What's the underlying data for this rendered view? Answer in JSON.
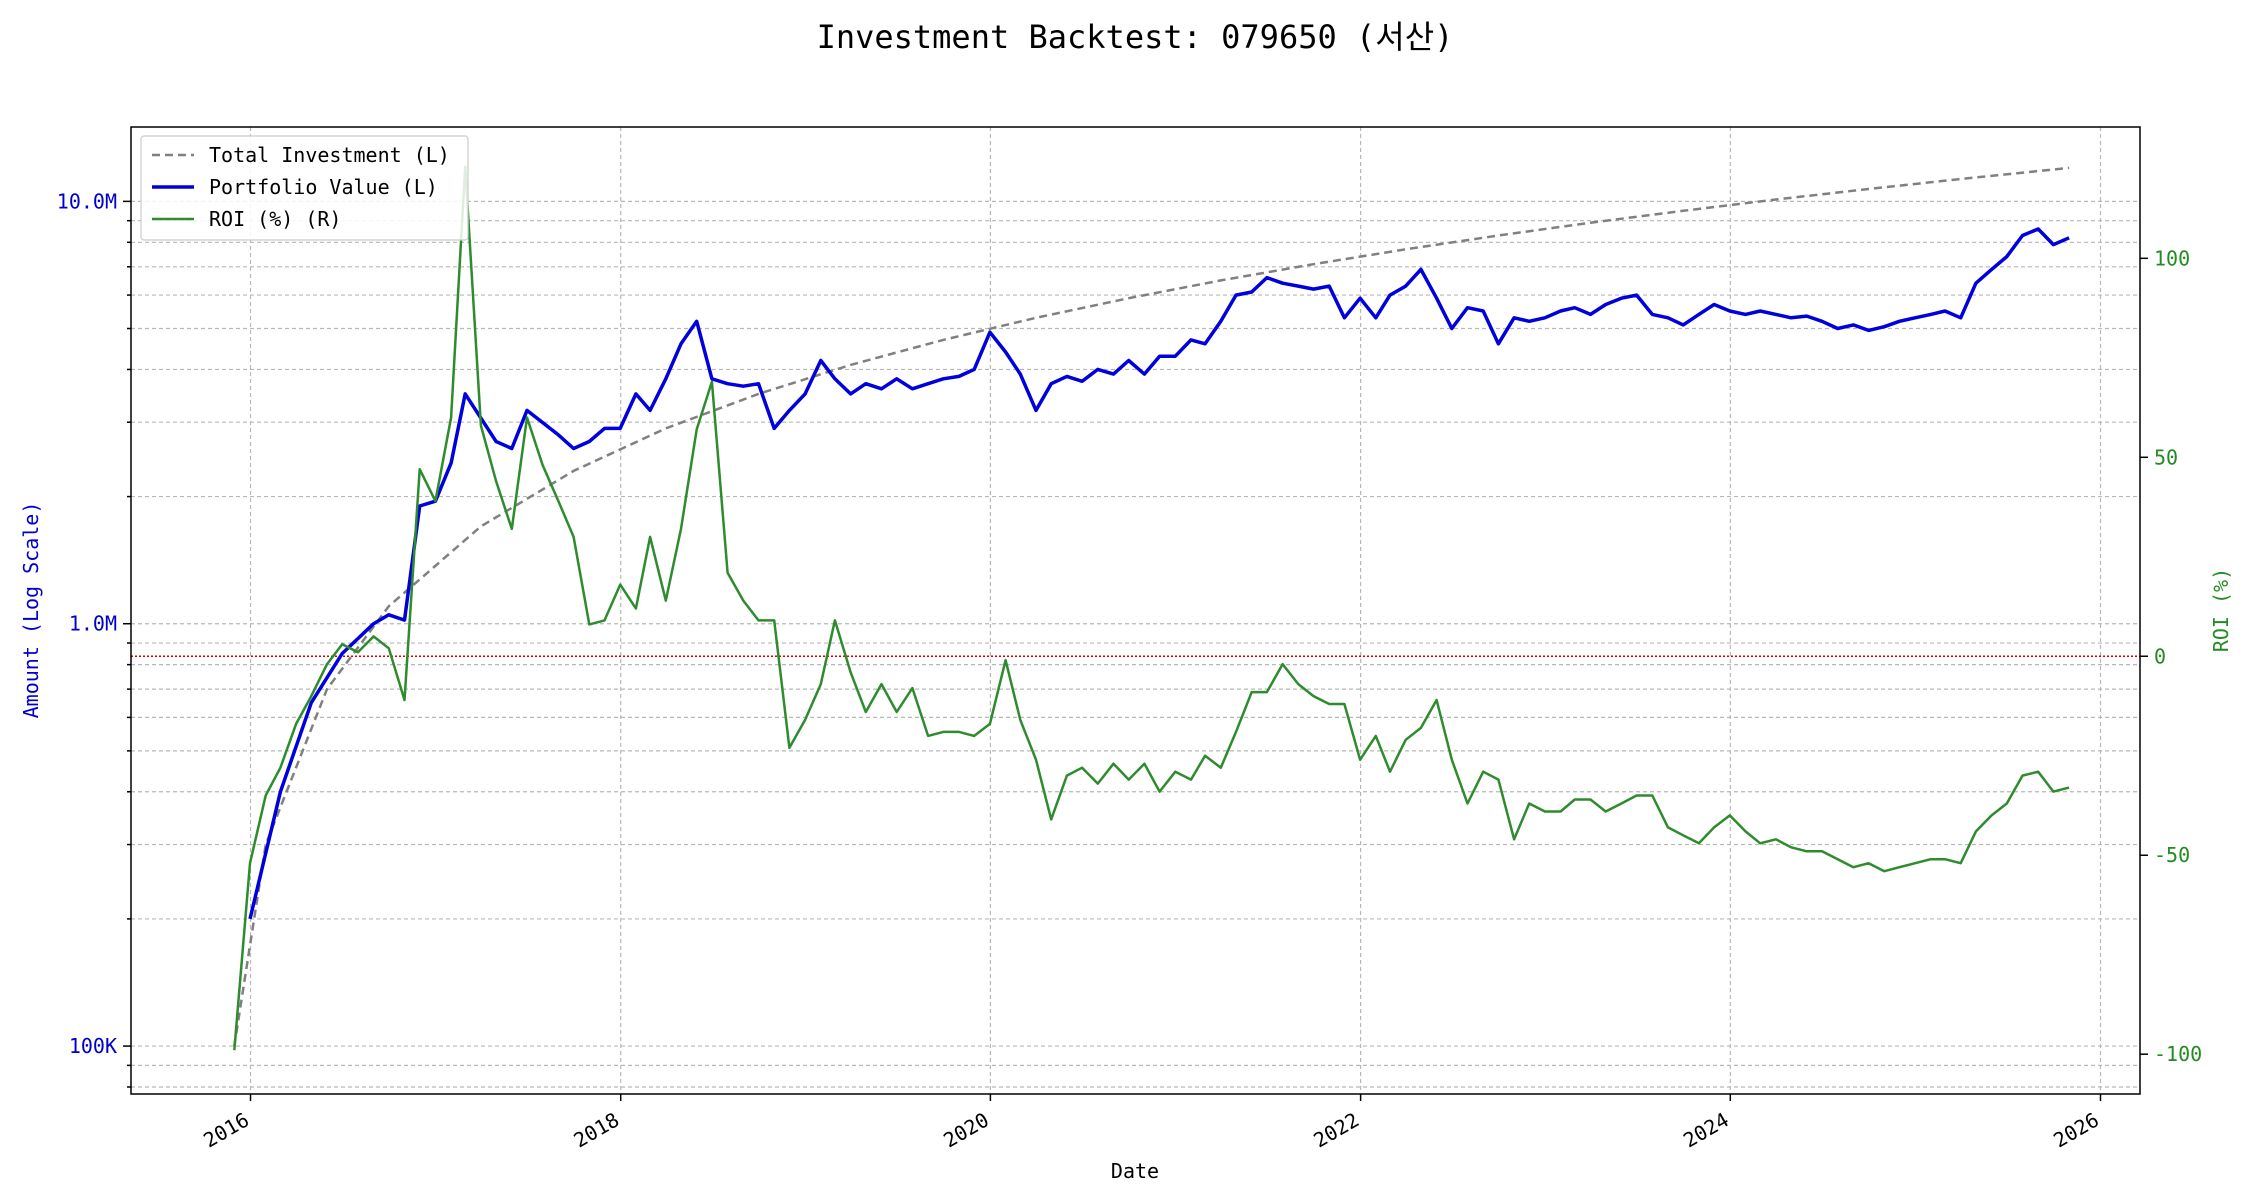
{
  "colors": {
    "investment": "#808080",
    "portfolio": "#0000dd",
    "roi": "#2e8b2e",
    "zero_line": "#dd0000",
    "left_axis": "#0000cc",
    "right_axis": "#228b22"
  },
  "chart_data": {
    "type": "line",
    "title": "Investment Backtest: 079650 (서산)",
    "xlabel": "Date",
    "ylabel_left": "Amount (Log Scale)",
    "ylabel_right": "ROI (%)",
    "x_ticks": [
      "2016",
      "2018",
      "2020",
      "2022",
      "2024",
      "2026"
    ],
    "y_left_ticks": [
      "100K",
      "1.0M",
      "10.0M"
    ],
    "y_right_ticks": [
      "-100",
      "-50",
      "0",
      "50",
      "100"
    ],
    "y_left_scale": "log",
    "y_left_lim": [
      77000,
      15000000
    ],
    "y_right_lim": [
      -110,
      133
    ],
    "x_lim": [
      "2015-05-10",
      "2026-03-20"
    ],
    "grid": true,
    "legend_position": "upper left",
    "legend": [
      "Total Investment (L)",
      "Portfolio Value (L)",
      "ROI (%) (R)"
    ],
    "zero_reference_line": 0,
    "series": [
      {
        "name": "Total Investment (L)",
        "axis": "left",
        "style": "dashed",
        "x": [
          "2015-11-30",
          "2016-01-31",
          "2016-05-31",
          "2016-09-30",
          "2017-03-31",
          "2017-09-30",
          "2018-03-31",
          "2018-09-30",
          "2019-03-31",
          "2019-09-30",
          "2020-03-31",
          "2020-09-30",
          "2021-03-31",
          "2021-09-30",
          "2022-03-31",
          "2022-09-30",
          "2023-03-31",
          "2023-09-30",
          "2024-03-31",
          "2024-09-30",
          "2025-03-31",
          "2025-10-31"
        ],
        "values": [
          100000,
          300000,
          700000,
          1100000,
          1700000,
          2300000,
          2900000,
          3500000,
          4100000,
          4700000,
          5300000,
          5900000,
          6500000,
          7100000,
          7700000,
          8300000,
          8900000,
          9500000,
          10100000,
          10700000,
          11300000,
          12000000
        ]
      },
      {
        "name": "Portfolio Value (L)",
        "axis": "left",
        "style": "solid",
        "x": [
          "2015-12-31",
          "2016-02-29",
          "2016-04-30",
          "2016-06-30",
          "2016-08-31",
          "2016-09-30",
          "2016-10-31",
          "2016-11-30",
          "2016-12-31",
          "2017-01-31",
          "2017-02-28",
          "2017-04-30",
          "2017-05-31",
          "2017-06-30",
          "2017-08-31",
          "2017-09-30",
          "2017-10-31",
          "2017-11-30",
          "2017-12-31",
          "2018-01-31",
          "2018-02-28",
          "2018-03-31",
          "2018-04-30",
          "2018-05-31",
          "2018-06-30",
          "2018-07-31",
          "2018-08-31",
          "2018-09-30",
          "2018-10-31",
          "2018-11-30",
          "2018-12-31",
          "2019-01-31",
          "2019-02-28",
          "2019-03-31",
          "2019-04-30",
          "2019-05-31",
          "2019-06-30",
          "2019-07-31",
          "2019-08-31",
          "2019-09-30",
          "2019-10-31",
          "2019-11-30",
          "2019-12-31",
          "2020-01-31",
          "2020-02-29",
          "2020-03-31",
          "2020-04-30",
          "2020-05-31",
          "2020-06-30",
          "2020-07-31",
          "2020-08-31",
          "2020-09-30",
          "2020-10-31",
          "2020-11-30",
          "2020-12-31",
          "2021-01-31",
          "2021-02-28",
          "2021-03-31",
          "2021-04-30",
          "2021-05-31",
          "2021-06-30",
          "2021-07-31",
          "2021-08-31",
          "2021-09-30",
          "2021-10-31",
          "2021-11-30",
          "2021-12-31",
          "2022-01-31",
          "2022-02-28",
          "2022-03-31",
          "2022-04-30",
          "2022-05-31",
          "2022-06-30",
          "2022-07-31",
          "2022-08-31",
          "2022-09-30",
          "2022-10-31",
          "2022-11-30",
          "2022-12-31",
          "2023-01-31",
          "2023-02-28",
          "2023-03-31",
          "2023-04-30",
          "2023-05-31",
          "2023-06-30",
          "2023-07-31",
          "2023-08-31",
          "2023-09-30",
          "2023-10-31",
          "2023-11-30",
          "2023-12-31",
          "2024-01-31",
          "2024-02-29",
          "2024-03-31",
          "2024-04-30",
          "2024-05-31",
          "2024-06-30",
          "2024-07-31",
          "2024-08-31",
          "2024-09-30",
          "2024-10-31",
          "2024-11-30",
          "2024-12-31",
          "2025-01-31",
          "2025-02-28",
          "2025-03-31",
          "2025-04-30",
          "2025-05-31",
          "2025-06-30",
          "2025-07-31",
          "2025-08-31",
          "2025-09-30",
          "2025-10-31"
        ],
        "values": [
          200000,
          400000,
          650000,
          850000,
          1000000,
          1050000,
          1020000,
          1900000,
          1950000,
          2400000,
          3500000,
          2700000,
          2600000,
          3200000,
          2800000,
          2600000,
          2700000,
          2900000,
          2900000,
          3500000,
          3200000,
          3800000,
          4600000,
          5200000,
          3800000,
          3700000,
          3650000,
          3700000,
          2900000,
          3200000,
          3500000,
          4200000,
          3800000,
          3500000,
          3700000,
          3600000,
          3800000,
          3600000,
          3700000,
          3800000,
          3850000,
          4000000,
          4900000,
          4400000,
          3900000,
          3200000,
          3700000,
          3850000,
          3750000,
          4000000,
          3900000,
          4200000,
          3900000,
          4300000,
          4300000,
          4700000,
          4600000,
          5200000,
          6000000,
          6100000,
          6600000,
          6400000,
          6300000,
          6200000,
          6300000,
          5300000,
          5900000,
          5300000,
          6000000,
          6300000,
          6900000,
          5900000,
          5000000,
          5600000,
          5500000,
          4600000,
          5300000,
          5200000,
          5300000,
          5500000,
          5600000,
          5400000,
          5700000,
          5900000,
          6000000,
          5400000,
          5300000,
          5100000,
          5400000,
          5700000,
          5500000,
          5400000,
          5500000,
          5400000,
          5300000,
          5350000,
          5200000,
          5000000,
          5100000,
          4950000,
          5050000,
          5200000,
          5300000,
          5400000,
          5500000,
          5300000,
          6400000,
          6900000,
          7400000,
          8300000,
          8600000,
          7900000,
          8200000
        ]
      },
      {
        "name": "ROI (%) (R)",
        "axis": "right",
        "style": "solid",
        "x": [
          "2015-11-30",
          "2015-12-31",
          "2016-01-31",
          "2016-02-29",
          "2016-03-31",
          "2016-04-30",
          "2016-05-31",
          "2016-06-30",
          "2016-07-31",
          "2016-08-31",
          "2016-09-30",
          "2016-10-31",
          "2016-11-30",
          "2016-12-31",
          "2017-01-31",
          "2017-02-28",
          "2017-03-31",
          "2017-04-30",
          "2017-05-31",
          "2017-06-30",
          "2017-07-31",
          "2017-08-31",
          "2017-09-30",
          "2017-10-31",
          "2017-11-30",
          "2017-12-31",
          "2018-01-31",
          "2018-02-28",
          "2018-03-31",
          "2018-04-30",
          "2018-05-31",
          "2018-06-30",
          "2018-07-31",
          "2018-08-31",
          "2018-09-30",
          "2018-10-31",
          "2018-11-30",
          "2018-12-31",
          "2019-01-31",
          "2019-02-28",
          "2019-03-31",
          "2019-04-30",
          "2019-05-31",
          "2019-06-30",
          "2019-07-31",
          "2019-08-31",
          "2019-09-30",
          "2019-10-31",
          "2019-11-30",
          "2019-12-31",
          "2020-01-31",
          "2020-02-29",
          "2020-03-31",
          "2020-04-30",
          "2020-05-31",
          "2020-06-30",
          "2020-07-31",
          "2020-08-31",
          "2020-09-30",
          "2020-10-31",
          "2020-11-30",
          "2020-12-31",
          "2021-01-31",
          "2021-02-28",
          "2021-03-31",
          "2021-04-30",
          "2021-05-31",
          "2021-06-30",
          "2021-07-31",
          "2021-08-31",
          "2021-09-30",
          "2021-10-31",
          "2021-11-30",
          "2021-12-31",
          "2022-01-31",
          "2022-02-28",
          "2022-03-31",
          "2022-04-30",
          "2022-05-31",
          "2022-06-30",
          "2022-07-31",
          "2022-08-31",
          "2022-09-30",
          "2022-10-31",
          "2022-11-30",
          "2022-12-31",
          "2023-01-31",
          "2023-02-28",
          "2023-03-31",
          "2023-04-30",
          "2023-05-31",
          "2023-06-30",
          "2023-07-31",
          "2023-08-31",
          "2023-09-30",
          "2023-10-31",
          "2023-11-30",
          "2023-12-31",
          "2024-01-31",
          "2024-02-29",
          "2024-03-31",
          "2024-04-30",
          "2024-05-31",
          "2024-06-30",
          "2024-07-31",
          "2024-08-31",
          "2024-09-30",
          "2024-10-31",
          "2024-11-30",
          "2024-12-31",
          "2025-01-31",
          "2025-02-28",
          "2025-03-31",
          "2025-04-30",
          "2025-05-31",
          "2025-06-30",
          "2025-07-31",
          "2025-08-31",
          "2025-09-30",
          "2025-10-31"
        ],
        "values": [
          -99,
          -52,
          -35,
          -28,
          -17,
          -10,
          -2,
          3,
          1,
          5,
          2,
          -11,
          47,
          39,
          60,
          123,
          58,
          44,
          32,
          60,
          48,
          39,
          30,
          8,
          9,
          18,
          12,
          30,
          14,
          32,
          57,
          69,
          21,
          14,
          9,
          9,
          -23,
          -16,
          -7,
          9,
          -4,
          -14,
          -7,
          -14,
          -8,
          -20,
          -19,
          -19,
          -20,
          -17,
          -1,
          -16,
          -26,
          -41,
          -30,
          -28,
          -32,
          -27,
          -31,
          -27,
          -34,
          -29,
          -31,
          -25,
          -28,
          -19,
          -9,
          -9,
          -2,
          -7,
          -10,
          -12,
          -12,
          -26,
          -20,
          -29,
          -21,
          -18,
          -11,
          -26,
          -37,
          -29,
          -31,
          -46,
          -37,
          -39,
          -39,
          -36,
          -36,
          -39,
          -37,
          -35,
          -35,
          -43,
          -45,
          -47,
          -43,
          -40,
          -44,
          -47,
          -46,
          -48,
          -49,
          -49,
          -51,
          -53,
          -52,
          -54,
          -53,
          -52,
          -51,
          -51,
          -52,
          -44,
          -40,
          -37,
          -30,
          -29,
          -34,
          -33
        ]
      }
    ]
  }
}
